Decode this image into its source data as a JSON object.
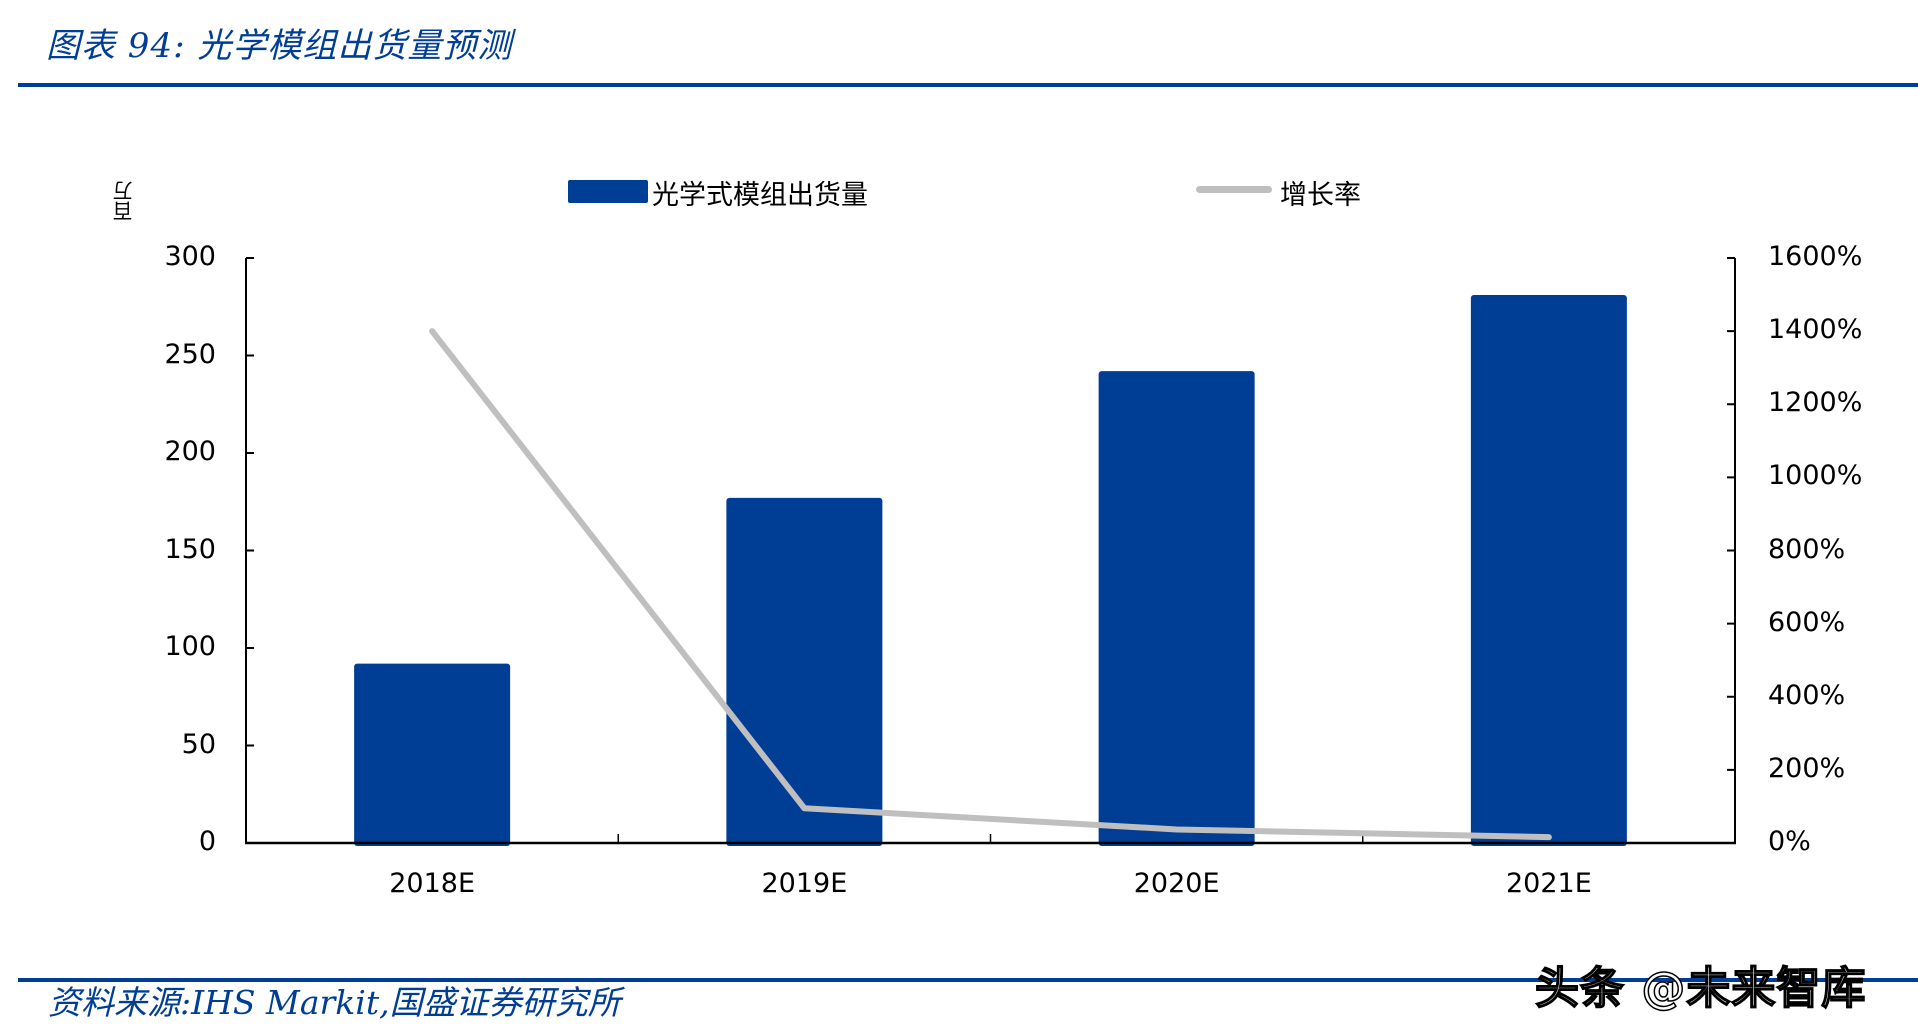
{
  "header": {
    "title": "图表 94:  光学模组出货量预测"
  },
  "legend": {
    "bar_label": "光学式模组出货量",
    "line_label": "增长率"
  },
  "axis": {
    "left_unit": "百万",
    "left_ticks": [
      "0",
      "50",
      "100",
      "150",
      "200",
      "250",
      "300"
    ],
    "right_ticks": [
      "0%",
      "200%",
      "400%",
      "600%",
      "800%",
      "1000%",
      "1200%",
      "1400%",
      "1600%"
    ],
    "categories": [
      "2018E",
      "2019E",
      "2020E",
      "2021E"
    ]
  },
  "footer": {
    "source": "资料来源:IHS Markit,国盛证券研究所",
    "watermark": "头条 @未来智库"
  },
  "colors": {
    "brand_blue": "#003e96",
    "bar": "#003e96",
    "line": "#bfbfbf",
    "axis": "#000000"
  },
  "chart_data": {
    "type": "bar",
    "title": "光学模组出货量预测",
    "categories": [
      "2018E",
      "2019E",
      "2020E",
      "2021E"
    ],
    "series": [
      {
        "name": "光学式模组出货量",
        "type": "bar",
        "axis": "left",
        "values": [
          92,
          177,
          242,
          281
        ]
      },
      {
        "name": "增长率",
        "type": "line",
        "axis": "right",
        "values": [
          1400,
          95,
          37,
          16
        ],
        "unit": "%"
      }
    ],
    "xlabel": "",
    "ylabel": "百万",
    "ylim": [
      0,
      300
    ],
    "y_ticks": [
      0,
      50,
      100,
      150,
      200,
      250,
      300
    ],
    "y2label": "",
    "y2lim": [
      0,
      1600
    ],
    "y2_ticks": [
      0,
      200,
      400,
      600,
      800,
      1000,
      1200,
      1400,
      1600
    ],
    "grid": false,
    "legend_position": "top"
  }
}
